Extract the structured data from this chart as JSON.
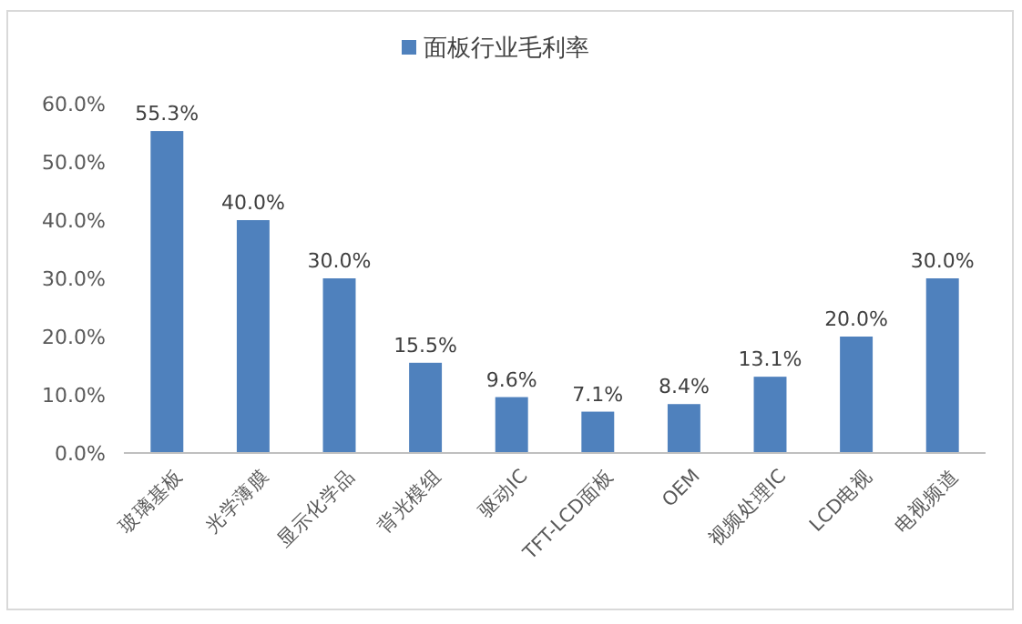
{
  "chart_data": {
    "type": "bar",
    "categories": [
      "玻璃基板",
      "光学薄膜",
      "显示化学品",
      "背光模组",
      "驱动IC",
      "TFT-LCD面板",
      "OEM",
      "视频处理IC",
      "LCD电视",
      "电视频道"
    ],
    "series": [
      {
        "name": "面板行业毛利率",
        "color": "#4f81bd",
        "values": [
          55.3,
          40.0,
          30.0,
          15.5,
          9.6,
          7.1,
          8.4,
          13.1,
          20.0,
          30.0
        ],
        "value_labels": [
          "55.3%",
          "40.0%",
          "30.0%",
          "15.5%",
          "9.6%",
          "7.1%",
          "8.4%",
          "13.1%",
          "20.0%",
          "30.0%"
        ]
      }
    ],
    "ylim": [
      0,
      60
    ],
    "yticks": [
      {
        "value": 0,
        "label": "0.0%"
      },
      {
        "value": 10,
        "label": "10.0%"
      },
      {
        "value": 20,
        "label": "20.0%"
      },
      {
        "value": 30,
        "label": "30.0%"
      },
      {
        "value": 40,
        "label": "40.0%"
      },
      {
        "value": 50,
        "label": "50.0%"
      },
      {
        "value": 60,
        "label": "60.0%"
      }
    ],
    "legend": "top",
    "grid": false
  }
}
